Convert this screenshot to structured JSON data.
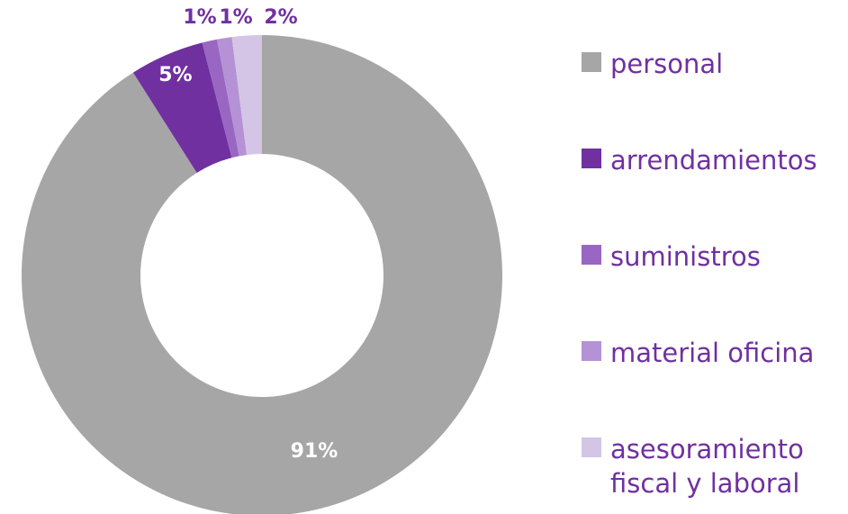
{
  "chart_data": {
    "type": "donut",
    "categories": [
      "personal",
      "arrendamientos",
      "suministros",
      "material oficina",
      "asesoramiento fiscal y laboral"
    ],
    "values": [
      91,
      5,
      1,
      1,
      2
    ],
    "value_labels": [
      "91%",
      "5%",
      "1%",
      "1%",
      "2%"
    ],
    "colors": [
      "#a6a6a6",
      "#7030a0",
      "#9966c2",
      "#b592d6",
      "#d4c5e6"
    ],
    "legend": "right"
  }
}
